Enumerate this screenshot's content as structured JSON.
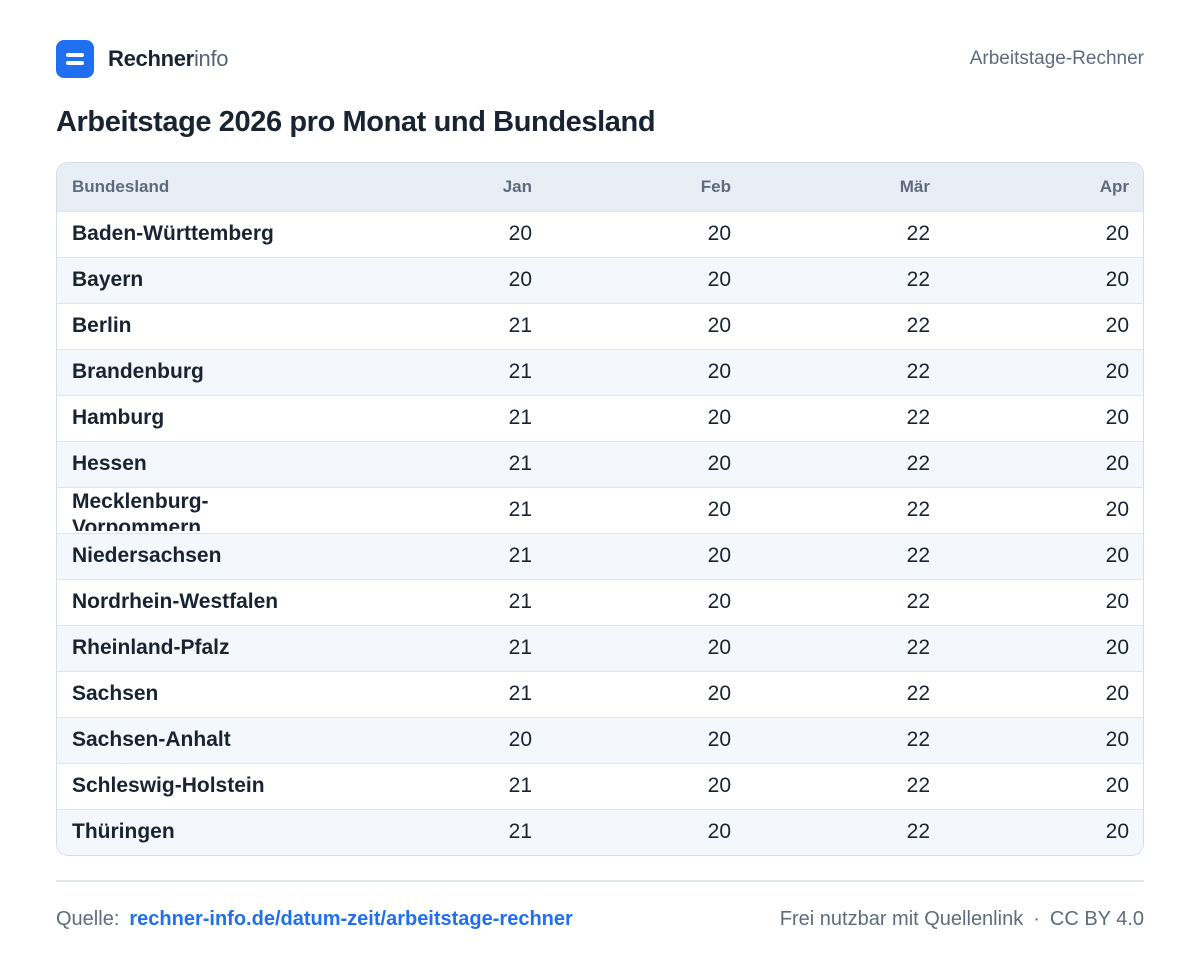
{
  "brand": {
    "name_bold": "Rechner",
    "name_light": "info",
    "accent": "#1f6ff0",
    "icon": "equals-logo-icon"
  },
  "header": {
    "link": "Arbeitstage-Rechner"
  },
  "title": "Arbeitstage 2026 pro Monat und Bundesland",
  "table": {
    "columns": [
      "Bundesland",
      "Jan",
      "Feb",
      "Mär",
      "Apr"
    ],
    "rows": [
      {
        "state": "Baden-Württemberg",
        "jan": "20",
        "feb": "20",
        "mar": "22",
        "apr": "20"
      },
      {
        "state": "Bayern",
        "jan": "20",
        "feb": "20",
        "mar": "22",
        "apr": "20"
      },
      {
        "state": "Berlin",
        "jan": "21",
        "feb": "20",
        "mar": "22",
        "apr": "20"
      },
      {
        "state": "Brandenburg",
        "jan": "21",
        "feb": "20",
        "mar": "22",
        "apr": "20"
      },
      {
        "state": "Hamburg",
        "jan": "21",
        "feb": "20",
        "mar": "22",
        "apr": "20"
      },
      {
        "state": "Hessen",
        "jan": "21",
        "feb": "20",
        "mar": "22",
        "apr": "20"
      },
      {
        "state": "Mecklenburg-Vorpommern",
        "jan": "21",
        "feb": "20",
        "mar": "22",
        "apr": "20"
      },
      {
        "state": "Niedersachsen",
        "jan": "21",
        "feb": "20",
        "mar": "22",
        "apr": "20"
      },
      {
        "state": "Nordrhein-Westfalen",
        "jan": "21",
        "feb": "20",
        "mar": "22",
        "apr": "20"
      },
      {
        "state": "Rheinland-Pfalz",
        "jan": "21",
        "feb": "20",
        "mar": "22",
        "apr": "20"
      },
      {
        "state": "Sachsen",
        "jan": "21",
        "feb": "20",
        "mar": "22",
        "apr": "20"
      },
      {
        "state": "Sachsen-Anhalt",
        "jan": "20",
        "feb": "20",
        "mar": "22",
        "apr": "20"
      },
      {
        "state": "Schleswig-Holstein",
        "jan": "21",
        "feb": "20",
        "mar": "22",
        "apr": "20"
      },
      {
        "state": "Thüringen",
        "jan": "21",
        "feb": "20",
        "mar": "22",
        "apr": "20"
      }
    ]
  },
  "footer": {
    "source_label": "Quelle:",
    "source_link": "rechner-info.de/datum-zeit/arbeitstage-rechner",
    "license_text": "Frei nutzbar mit Quellenlink",
    "separator": "·",
    "license": "CC BY 4.0"
  }
}
